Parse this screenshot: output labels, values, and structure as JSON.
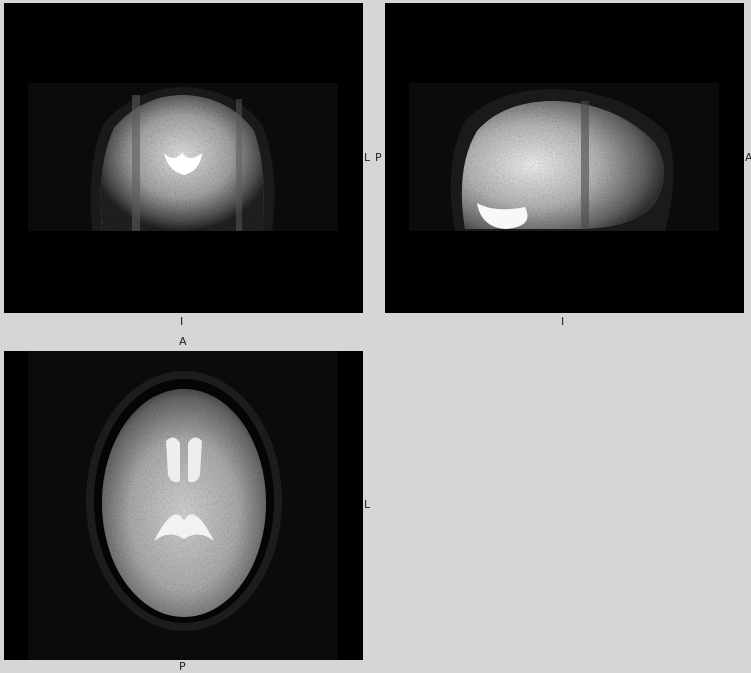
{
  "views": {
    "coronal": {
      "label_right": "L",
      "label_bottom": "I"
    },
    "sagittal": {
      "label_left": "P",
      "label_right": "A",
      "label_bottom": "I"
    },
    "axial": {
      "label_top": "A",
      "label_right": "L",
      "label_bottom": "P"
    }
  },
  "colors": {
    "background": "#d6d6d6",
    "viewport": "#000000",
    "label": "#222222"
  }
}
